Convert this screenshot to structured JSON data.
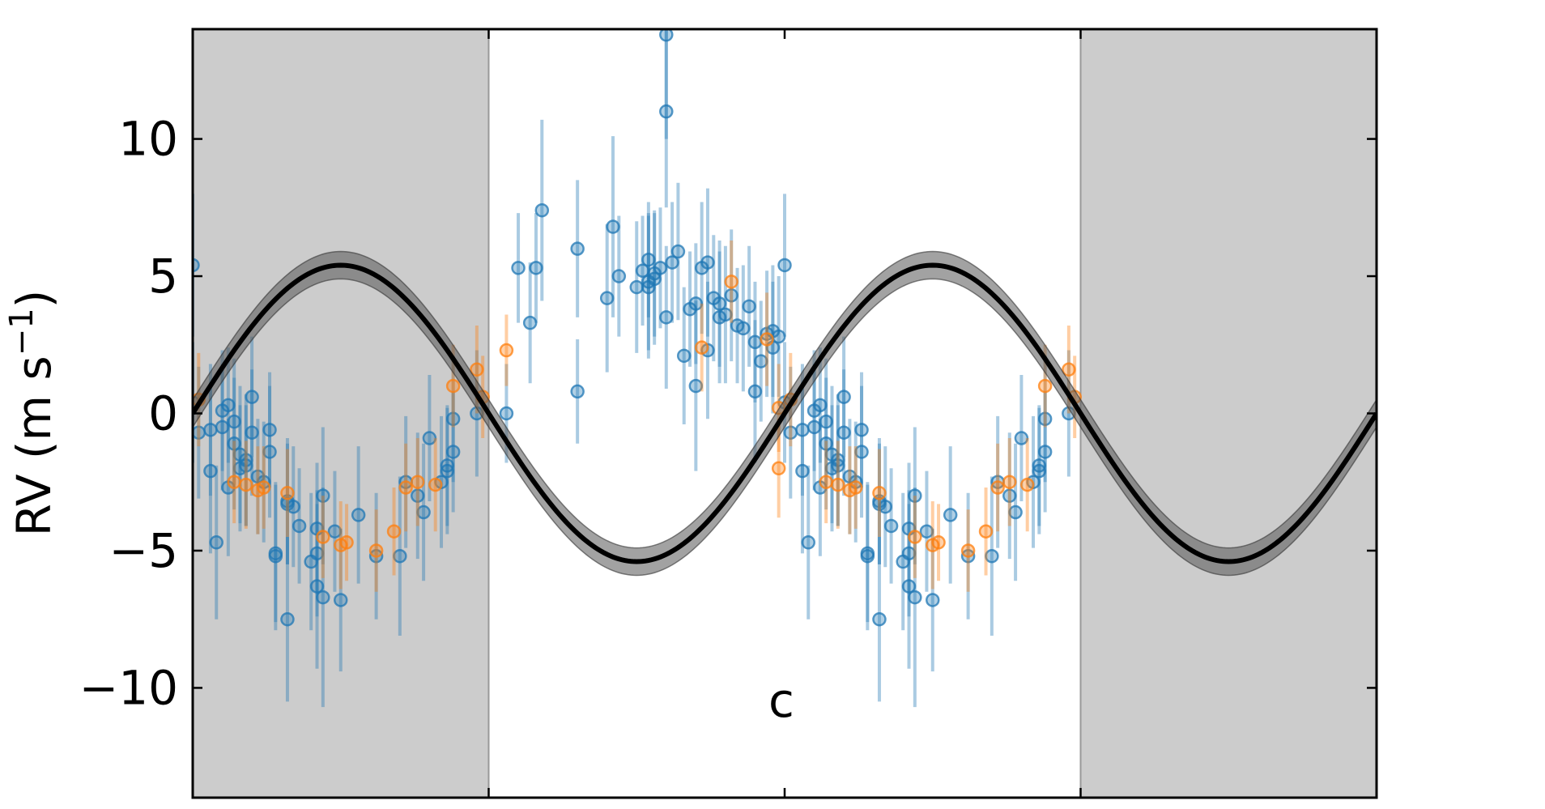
{
  "chart_data": {
    "type": "scatter",
    "title": "",
    "annotation": "c",
    "xlabel": "",
    "ylabel": "RV (m s",
    "ylabel_superscript": "−1",
    "ylabel_close": ")",
    "xlim": [
      -0.5,
      1.5
    ],
    "ylim": [
      -14,
      14
    ],
    "yticks": [
      10,
      5,
      0,
      -5,
      -10
    ],
    "ytick_labels": [
      "10",
      "5",
      "0",
      "−5",
      "−10"
    ],
    "xticks": [
      -0.5,
      0.0,
      0.5,
      1.0,
      1.5
    ],
    "xtick_labels": [],
    "grid": false,
    "legend": "none",
    "shaded_phase_ranges": [
      [
        -0.5,
        0.0
      ],
      [
        1.0,
        1.5
      ]
    ],
    "colors": {
      "series_1": "#1f77b4",
      "series_2": "#ff7f0e",
      "model": "#000000",
      "band": "#555555",
      "shade": "#cccccc"
    },
    "model": {
      "type": "sinusoid",
      "amplitude": 5.4,
      "period_phase": 1.0,
      "phase_zero": 0.0,
      "band_halfwidth": 0.5
    },
    "series": [
      {
        "color": "#1f77b4",
        "points": [
          [
            0.03,
            0.0,
            1.8
          ],
          [
            0.05,
            5.3,
            2.0
          ],
          [
            0.07,
            3.3,
            2.2
          ],
          [
            0.08,
            5.3,
            2.0
          ],
          [
            0.09,
            7.4,
            3.3
          ],
          [
            0.15,
            0.8,
            1.9
          ],
          [
            0.15,
            6.0,
            2.5
          ],
          [
            0.2,
            4.2,
            2.7
          ],
          [
            0.21,
            6.8,
            3.3
          ],
          [
            0.22,
            5.0,
            2.2
          ],
          [
            0.25,
            4.6,
            2.4
          ],
          [
            0.26,
            5.2,
            2.0
          ],
          [
            0.27,
            4.6,
            2.6
          ],
          [
            0.27,
            4.8,
            2.5
          ],
          [
            0.27,
            5.6,
            2.1
          ],
          [
            0.28,
            5.1,
            2.3
          ],
          [
            0.28,
            4.9,
            2.4
          ],
          [
            0.29,
            5.3,
            2.2
          ],
          [
            0.3,
            3.5,
            2.6
          ],
          [
            0.3,
            11.0,
            3.5
          ],
          [
            0.3,
            13.8,
            3.8
          ],
          [
            0.31,
            5.5,
            2.2
          ],
          [
            0.32,
            5.9,
            2.5
          ],
          [
            0.33,
            2.1,
            2.5
          ],
          [
            0.34,
            3.8,
            2.1
          ],
          [
            0.35,
            4.0,
            2.2
          ],
          [
            0.35,
            1.0,
            3.1
          ],
          [
            0.36,
            5.3,
            2.4
          ],
          [
            0.37,
            2.3,
            2.5
          ],
          [
            0.37,
            5.5,
            2.7
          ],
          [
            0.38,
            4.2,
            2.3
          ],
          [
            0.39,
            3.5,
            2.4
          ],
          [
            0.39,
            4.0,
            2.3
          ],
          [
            0.4,
            3.6,
            2.5
          ],
          [
            0.41,
            4.3,
            2.4
          ],
          [
            0.42,
            3.2,
            2.1
          ],
          [
            0.43,
            3.1,
            2.3
          ],
          [
            0.44,
            3.9,
            2.2
          ],
          [
            0.45,
            0.8,
            2.6
          ],
          [
            0.45,
            2.6,
            2.2
          ],
          [
            0.46,
            1.9,
            2.2
          ],
          [
            0.47,
            2.9,
            2.3
          ],
          [
            0.48,
            3.0,
            2.4
          ],
          [
            0.48,
            2.4,
            2.4
          ],
          [
            0.49,
            2.8,
            2.2
          ],
          [
            0.5,
            0.4,
            2.2
          ],
          [
            0.5,
            5.4,
            2.6
          ],
          [
            0.51,
            -0.7,
            2.4
          ],
          [
            0.53,
            -0.6,
            2.4
          ],
          [
            0.53,
            -2.1,
            3.0
          ],
          [
            0.54,
            -4.7,
            2.8
          ],
          [
            0.55,
            -0.5,
            2.3
          ],
          [
            0.55,
            0.1,
            2.2
          ],
          [
            0.56,
            0.3,
            2.1
          ],
          [
            0.56,
            -2.7,
            2.5
          ],
          [
            0.57,
            -0.3,
            2.3
          ],
          [
            0.57,
            -1.1,
            2.4
          ],
          [
            0.58,
            -1.5,
            2.5
          ],
          [
            0.58,
            -2.0,
            2.3
          ],
          [
            0.59,
            -1.9,
            2.2
          ],
          [
            0.59,
            -1.7,
            2.4
          ],
          [
            0.6,
            0.6,
            2.2
          ],
          [
            0.6,
            -0.7,
            2.3
          ],
          [
            0.61,
            -2.3,
            2.1
          ],
          [
            0.62,
            -2.5,
            2.2
          ],
          [
            0.63,
            -0.6,
            2.1
          ],
          [
            0.63,
            -1.4,
            2.4
          ],
          [
            0.64,
            -5.2,
            2.7
          ],
          [
            0.64,
            -5.1,
            2.5
          ],
          [
            0.66,
            -3.2,
            2.3
          ],
          [
            0.66,
            -3.3,
            2.2
          ],
          [
            0.66,
            -7.5,
            3.0
          ],
          [
            0.67,
            -3.4,
            2.2
          ],
          [
            0.68,
            -4.1,
            2.1
          ],
          [
            0.7,
            -5.4,
            2.5
          ],
          [
            0.71,
            -5.1,
            2.3
          ],
          [
            0.71,
            -4.2,
            2.4
          ],
          [
            0.71,
            -6.3,
            3.0
          ],
          [
            0.72,
            -6.7,
            4.0
          ],
          [
            0.72,
            -3.0,
            2.5
          ],
          [
            0.74,
            -4.3,
            2.2
          ],
          [
            0.75,
            -6.8,
            2.6
          ],
          [
            0.78,
            -3.7,
            2.5
          ],
          [
            0.81,
            -5.2,
            2.3
          ],
          [
            0.85,
            -5.2,
            2.9
          ],
          [
            0.86,
            -2.5,
            2.4
          ],
          [
            0.88,
            -3.0,
            2.3
          ],
          [
            0.89,
            -3.6,
            2.5
          ],
          [
            0.9,
            -0.9,
            2.3
          ],
          [
            0.92,
            -2.5,
            2.4
          ],
          [
            0.93,
            -1.9,
            2.2
          ],
          [
            0.93,
            -2.1,
            2.3
          ],
          [
            0.94,
            -1.4,
            2.2
          ],
          [
            0.94,
            -0.2,
            2.3
          ],
          [
            0.98,
            0.0,
            2.3
          ]
        ]
      },
      {
        "color": "#ff7f0e",
        "points": [
          [
            0.03,
            2.3,
            1.3
          ],
          [
            0.36,
            2.4,
            1.6
          ],
          [
            0.41,
            4.8,
            1.5
          ],
          [
            0.47,
            2.7,
            1.7
          ],
          [
            0.49,
            0.2,
            1.6
          ],
          [
            0.49,
            -2.0,
            1.8
          ],
          [
            0.51,
            0.5,
            1.7
          ],
          [
            0.57,
            -2.5,
            1.5
          ],
          [
            0.59,
            -2.6,
            1.6
          ],
          [
            0.61,
            -2.8,
            1.6
          ],
          [
            0.62,
            -2.7,
            1.5
          ],
          [
            0.66,
            -2.9,
            1.6
          ],
          [
            0.72,
            -4.5,
            1.5
          ],
          [
            0.75,
            -4.8,
            1.6
          ],
          [
            0.76,
            -4.7,
            1.4
          ],
          [
            0.81,
            -5.0,
            1.5
          ],
          [
            0.84,
            -4.3,
            1.6
          ],
          [
            0.86,
            -2.7,
            1.6
          ],
          [
            0.88,
            -2.5,
            1.6
          ],
          [
            0.91,
            -2.6,
            1.7
          ],
          [
            0.94,
            1.0,
            1.5
          ],
          [
            0.98,
            1.6,
            1.6
          ],
          [
            0.99,
            0.6,
            1.5
          ]
        ]
      }
    ]
  }
}
